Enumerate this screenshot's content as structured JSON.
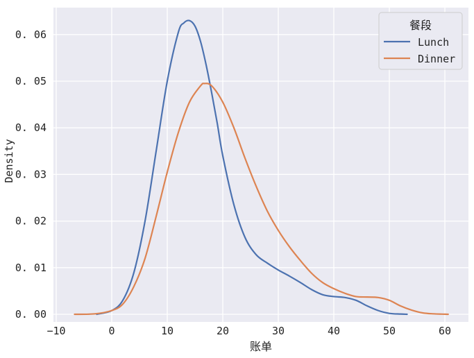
{
  "chart_data": {
    "type": "line",
    "title": "",
    "xlabel": "账单",
    "ylabel": "Density",
    "xlim": [
      -10,
      64
    ],
    "ylim": [
      0,
      0.066
    ],
    "x_ticks": [
      -10,
      0,
      10,
      20,
      30,
      40,
      50,
      60
    ],
    "x_tick_labels": [
      "−10",
      "0",
      "10",
      "20",
      "30",
      "40",
      "50",
      "60"
    ],
    "y_ticks": [
      0.0,
      0.01,
      0.02,
      0.03,
      0.04,
      0.05,
      0.06
    ],
    "y_tick_labels": [
      "0.00",
      "0.01",
      "0.02",
      "0.03",
      "0.04",
      "0.05",
      "0.06"
    ],
    "grid": true,
    "legend": {
      "title": "餐段",
      "position": "upper right",
      "entries": [
        "Lunch",
        "Dinner"
      ]
    },
    "series": [
      {
        "name": "Lunch",
        "color": "#4c72b0",
        "x": [
          -2.7,
          0,
          2,
          4,
          6,
          8,
          10,
          12,
          13,
          14,
          15,
          16,
          17,
          18,
          19,
          20,
          22,
          24,
          26,
          28,
          30,
          32,
          34,
          36,
          38,
          40,
          42,
          44,
          46,
          48,
          50,
          52,
          53.2
        ],
        "y": [
          0.0,
          0.0008,
          0.003,
          0.009,
          0.02,
          0.035,
          0.05,
          0.0605,
          0.0625,
          0.063,
          0.0618,
          0.0585,
          0.0535,
          0.0475,
          0.041,
          0.034,
          0.0235,
          0.0165,
          0.0128,
          0.011,
          0.0095,
          0.0082,
          0.0068,
          0.0053,
          0.0042,
          0.0038,
          0.0036,
          0.003,
          0.0018,
          0.0008,
          0.0002,
          5e-05,
          0.0
        ]
      },
      {
        "name": "Dinner",
        "color": "#dd8452",
        "x": [
          -6.7,
          -3,
          0,
          2,
          4,
          6,
          8,
          10,
          12,
          14,
          16,
          16.7,
          18,
          20,
          22,
          24,
          26,
          28,
          30,
          32,
          34,
          36,
          38,
          40,
          42,
          44,
          46,
          48,
          50,
          52,
          54,
          56,
          58,
          60.6
        ],
        "y": [
          0.0,
          0.0001,
          0.0008,
          0.0022,
          0.006,
          0.012,
          0.021,
          0.0305,
          0.039,
          0.0455,
          0.049,
          0.0495,
          0.049,
          0.0455,
          0.04,
          0.0335,
          0.0275,
          0.0222,
          0.018,
          0.0145,
          0.0115,
          0.0088,
          0.0068,
          0.0055,
          0.0045,
          0.0038,
          0.0037,
          0.0036,
          0.003,
          0.0018,
          0.0009,
          0.0003,
          0.0001,
          0.0
        ]
      }
    ]
  }
}
